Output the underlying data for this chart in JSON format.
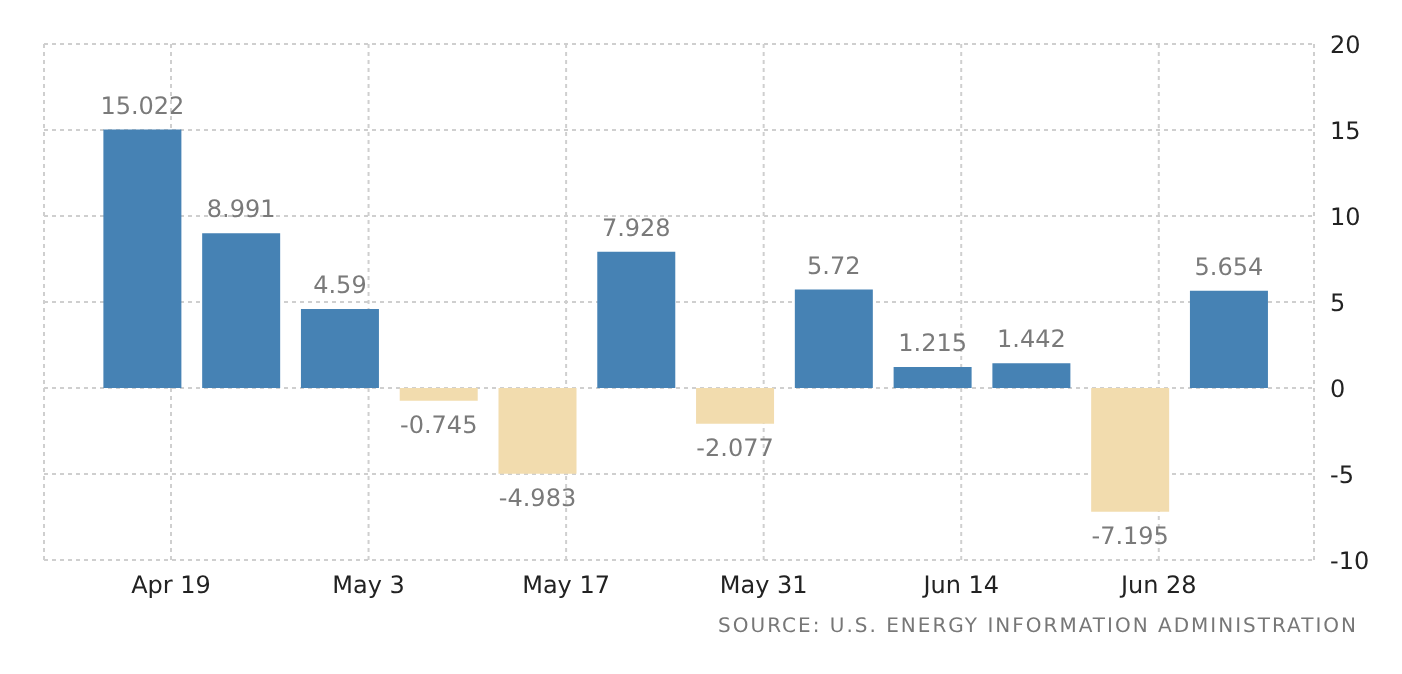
{
  "chart_data": {
    "type": "bar",
    "x": [
      "--04-17",
      "--04-24",
      "--05-01",
      "--05-08",
      "--05-15",
      "--05-22",
      "--05-29",
      "--06-05",
      "--06-12",
      "--06-19",
      "--06-26",
      "--07-03"
    ],
    "values": [
      15.022,
      8.991,
      4.59,
      -0.745,
      -4.983,
      7.928,
      -2.077,
      5.72,
      1.215,
      1.442,
      -7.195,
      5.654
    ],
    "colors": [
      "#4682b4",
      "#4682b4",
      "#4682b4",
      "#f2dcae",
      "#f2dcae",
      "#4682b4",
      "#f2dcae",
      "#4682b4",
      "#4682b4",
      "#4682b4",
      "#f2dcae",
      "#4682b4"
    ],
    "data_labels": true,
    "xlim": [
      "--04-10",
      "--07-09"
    ],
    "xticks": [
      {
        "value": "--04-19",
        "label": "Apr 19"
      },
      {
        "value": "--05-03",
        "label": "May 3"
      },
      {
        "value": "--05-17",
        "label": "May 17"
      },
      {
        "value": "--05-31",
        "label": "May 31"
      },
      {
        "value": "--06-14",
        "label": "Jun 14"
      },
      {
        "value": "--06-28",
        "label": "Jun 28"
      }
    ],
    "ylim": [
      -10,
      20
    ],
    "yticks": [
      -10,
      -5,
      0,
      5,
      10,
      15,
      20
    ],
    "grid": true,
    "legend": false,
    "annotations": [
      "SOURCE: U.S. ENERGY INFORMATION ADMINISTRATION"
    ]
  }
}
